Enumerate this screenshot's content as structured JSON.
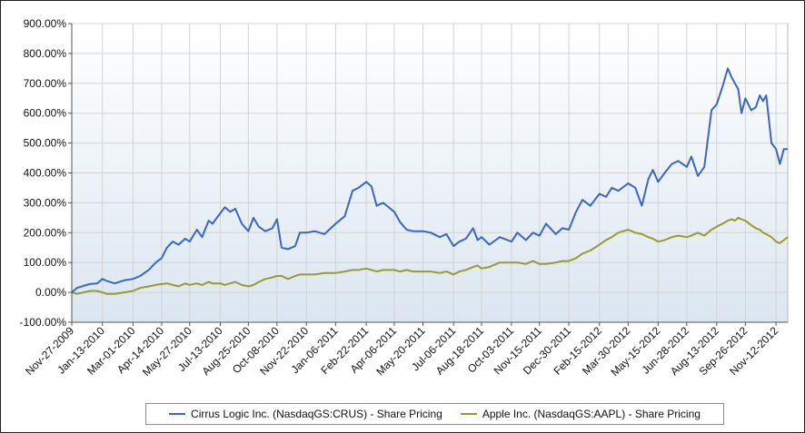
{
  "chart_data": {
    "type": "line",
    "title": "",
    "xlabel": "",
    "ylabel": "",
    "ylim": [
      -100,
      900
    ],
    "y_ticks": [
      "-100.00%",
      "0.00%",
      "100.00%",
      "200.00%",
      "300.00%",
      "400.00%",
      "500.00%",
      "600.00%",
      "700.00%",
      "800.00%",
      "900.00%"
    ],
    "x_ticks": [
      "Nov-27-2009",
      "Jan-13-2010",
      "Mar-01-2010",
      "Apr-14-2010",
      "May-27-2010",
      "Jul-13-2010",
      "Aug-25-2010",
      "Oct-08-2010",
      "Nov-22-2010",
      "Jan-06-2011",
      "Feb-22-2011",
      "Apr-06-2011",
      "May-20-2011",
      "Jul-06-2011",
      "Aug-18-2011",
      "Oct-03-2011",
      "Nov-15-2011",
      "Dec-30-2011",
      "Feb-15-2012",
      "Mar-30-2012",
      "May-15-2012",
      "Jun-28-2012",
      "Aug-13-2012",
      "Sep-26-2012",
      "Nov-12-2012"
    ],
    "grid": true,
    "legend_position": "bottom",
    "series": [
      {
        "name": "Cirrus Logic Inc. (NasdaqGS:CRUS) - Share Pricing",
        "color": "#3a66c4",
        "x": [
          "Nov-27-2009",
          "Dec-05-2009",
          "Dec-15-2009",
          "Dec-25-2009",
          "Jan-05-2010",
          "Jan-13-2010",
          "Jan-20-2010",
          "Feb-01-2010",
          "Feb-15-2010",
          "Mar-01-2010",
          "Mar-12-2010",
          "Mar-25-2010",
          "Apr-05-2010",
          "Apr-14-2010",
          "Apr-22-2010",
          "May-01-2010",
          "May-10-2010",
          "May-20-2010",
          "May-27-2010",
          "Jun-07-2010",
          "Jun-15-2010",
          "Jun-25-2010",
          "Jul-01-2010",
          "Jul-13-2010",
          "Jul-20-2010",
          "Jul-28-2010",
          "Aug-05-2010",
          "Aug-15-2010",
          "Aug-25-2010",
          "Sep-02-2010",
          "Sep-10-2010",
          "Sep-20-2010",
          "Oct-01-2010",
          "Oct-08-2010",
          "Oct-15-2010",
          "Oct-25-2010",
          "Nov-05-2010",
          "Nov-12-2010",
          "Nov-22-2010",
          "Dec-05-2010",
          "Dec-20-2010",
          "Jan-06-2011",
          "Jan-20-2011",
          "Feb-01-2011",
          "Feb-10-2011",
          "Feb-22-2011",
          "Mar-02-2011",
          "Mar-10-2011",
          "Mar-20-2011",
          "Apr-06-2011",
          "Apr-15-2011",
          "Apr-25-2011",
          "May-05-2011",
          "May-20-2011",
          "Jun-01-2011",
          "Jun-15-2011",
          "Jun-25-2011",
          "Jul-06-2011",
          "Jul-15-2011",
          "Jul-25-2011",
          "Aug-05-2011",
          "Aug-12-2011",
          "Aug-18-2011",
          "Aug-30-2011",
          "Sep-15-2011",
          "Oct-03-2011",
          "Oct-12-2011",
          "Oct-25-2011",
          "Nov-05-2011",
          "Nov-15-2011",
          "Nov-25-2011",
          "Dec-10-2011",
          "Dec-20-2011",
          "Dec-30-2011",
          "Jan-10-2012",
          "Jan-20-2012",
          "Feb-01-2012",
          "Feb-15-2012",
          "Feb-25-2012",
          "Mar-05-2012",
          "Mar-15-2012",
          "Mar-30-2012",
          "Apr-10-2012",
          "Apr-20-2012",
          "Apr-30-2012",
          "May-07-2012",
          "May-15-2012",
          "May-25-2012",
          "Jun-05-2012",
          "Jun-15-2012",
          "Jun-28-2012",
          "Jul-05-2012",
          "Jul-15-2012",
          "Jul-25-2012",
          "Aug-05-2012",
          "Aug-13-2012",
          "Aug-22-2012",
          "Aug-30-2012",
          "Sep-05-2012",
          "Sep-10-2012",
          "Sep-15-2012",
          "Sep-20-2012",
          "Sep-26-2012",
          "Oct-05-2012",
          "Oct-12-2012",
          "Oct-18-2012",
          "Oct-23-2012",
          "Oct-28-2012",
          "Nov-05-2012",
          "Nov-12-2012",
          "Nov-18-2012",
          "Nov-24-2012",
          "Nov-30-2012"
        ],
        "y": [
          0,
          15,
          22,
          28,
          30,
          45,
          38,
          30,
          40,
          45,
          55,
          75,
          100,
          115,
          150,
          170,
          160,
          180,
          170,
          210,
          185,
          240,
          230,
          265,
          285,
          270,
          280,
          230,
          205,
          250,
          220,
          205,
          215,
          245,
          150,
          145,
          155,
          200,
          200,
          205,
          195,
          230,
          255,
          340,
          350,
          370,
          355,
          290,
          300,
          270,
          235,
          210,
          205,
          205,
          200,
          185,
          195,
          155,
          170,
          180,
          215,
          175,
          185,
          160,
          185,
          170,
          200,
          175,
          200,
          190,
          230,
          195,
          215,
          210,
          270,
          310,
          290,
          330,
          320,
          350,
          340,
          365,
          350,
          290,
          380,
          410,
          370,
          400,
          430,
          440,
          420,
          455,
          390,
          420,
          610,
          630,
          690,
          750,
          720,
          700,
          680,
          600,
          650,
          610,
          620,
          660,
          640,
          660,
          500,
          480,
          430,
          480,
          480
        ]
      },
      {
        "name": "Apple Inc. (NasdaqGS:AAPL) - Share Pricing",
        "color": "#9a9a2e",
        "x": [
          "Nov-27-2009",
          "Dec-05-2009",
          "Dec-15-2009",
          "Dec-25-2009",
          "Jan-05-2010",
          "Jan-13-2010",
          "Jan-20-2010",
          "Feb-01-2010",
          "Feb-15-2010",
          "Mar-01-2010",
          "Mar-12-2010",
          "Mar-25-2010",
          "Apr-05-2010",
          "Apr-14-2010",
          "Apr-22-2010",
          "May-01-2010",
          "May-10-2010",
          "May-20-2010",
          "May-27-2010",
          "Jun-07-2010",
          "Jun-15-2010",
          "Jun-25-2010",
          "Jul-01-2010",
          "Jul-13-2010",
          "Jul-20-2010",
          "Jul-28-2010",
          "Aug-05-2010",
          "Aug-15-2010",
          "Aug-25-2010",
          "Sep-02-2010",
          "Sep-10-2010",
          "Sep-20-2010",
          "Oct-01-2010",
          "Oct-08-2010",
          "Oct-15-2010",
          "Oct-25-2010",
          "Nov-05-2010",
          "Nov-12-2010",
          "Nov-22-2010",
          "Dec-05-2010",
          "Dec-20-2010",
          "Jan-06-2011",
          "Jan-20-2011",
          "Feb-01-2011",
          "Feb-10-2011",
          "Feb-22-2011",
          "Mar-02-2011",
          "Mar-10-2011",
          "Mar-20-2011",
          "Apr-06-2011",
          "Apr-15-2011",
          "Apr-25-2011",
          "May-05-2011",
          "May-20-2011",
          "Jun-01-2011",
          "Jun-15-2011",
          "Jun-25-2011",
          "Jul-06-2011",
          "Jul-15-2011",
          "Jul-25-2011",
          "Aug-05-2011",
          "Aug-12-2011",
          "Aug-18-2011",
          "Aug-30-2011",
          "Sep-15-2011",
          "Oct-03-2011",
          "Oct-12-2011",
          "Oct-25-2011",
          "Nov-05-2011",
          "Nov-15-2011",
          "Nov-25-2011",
          "Dec-10-2011",
          "Dec-20-2011",
          "Dec-30-2011",
          "Jan-10-2012",
          "Jan-20-2012",
          "Feb-01-2012",
          "Feb-15-2012",
          "Feb-25-2012",
          "Mar-05-2012",
          "Mar-15-2012",
          "Mar-30-2012",
          "Apr-10-2012",
          "Apr-20-2012",
          "Apr-30-2012",
          "May-07-2012",
          "May-15-2012",
          "May-25-2012",
          "Jun-05-2012",
          "Jun-15-2012",
          "Jun-28-2012",
          "Jul-05-2012",
          "Jul-15-2012",
          "Jul-25-2012",
          "Aug-05-2012",
          "Aug-13-2012",
          "Aug-22-2012",
          "Aug-30-2012",
          "Sep-05-2012",
          "Sep-10-2012",
          "Sep-15-2012",
          "Sep-20-2012",
          "Sep-26-2012",
          "Oct-05-2012",
          "Oct-12-2012",
          "Oct-18-2012",
          "Oct-23-2012",
          "Oct-28-2012",
          "Nov-05-2012",
          "Nov-12-2012",
          "Nov-18-2012",
          "Nov-24-2012",
          "Nov-30-2012"
        ],
        "y": [
          0,
          -5,
          0,
          5,
          5,
          0,
          -5,
          -5,
          0,
          5,
          15,
          20,
          25,
          28,
          30,
          25,
          20,
          30,
          25,
          30,
          25,
          35,
          30,
          30,
          25,
          30,
          35,
          25,
          20,
          25,
          35,
          45,
          50,
          55,
          55,
          45,
          55,
          60,
          60,
          60,
          65,
          65,
          70,
          75,
          75,
          80,
          75,
          70,
          75,
          75,
          70,
          75,
          70,
          70,
          70,
          65,
          70,
          60,
          70,
          75,
          85,
          90,
          80,
          85,
          100,
          100,
          100,
          95,
          105,
          95,
          95,
          100,
          105,
          105,
          115,
          130,
          140,
          160,
          175,
          185,
          200,
          210,
          200,
          195,
          185,
          180,
          170,
          175,
          185,
          190,
          185,
          190,
          200,
          190,
          210,
          220,
          230,
          240,
          245,
          240,
          250,
          245,
          240,
          225,
          215,
          210,
          200,
          195,
          185,
          170,
          165,
          175,
          185
        ]
      }
    ]
  }
}
